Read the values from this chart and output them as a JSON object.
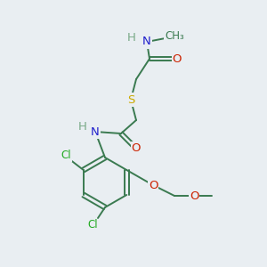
{
  "bg_color": "#e9eef2",
  "colors": {
    "bond": "#3a7a50",
    "H": "#7aaa88",
    "N": "#2020cc",
    "O": "#cc2200",
    "S": "#ccaa00",
    "Cl": "#22aa22"
  },
  "fs": 9.5,
  "fs_small": 8.5
}
